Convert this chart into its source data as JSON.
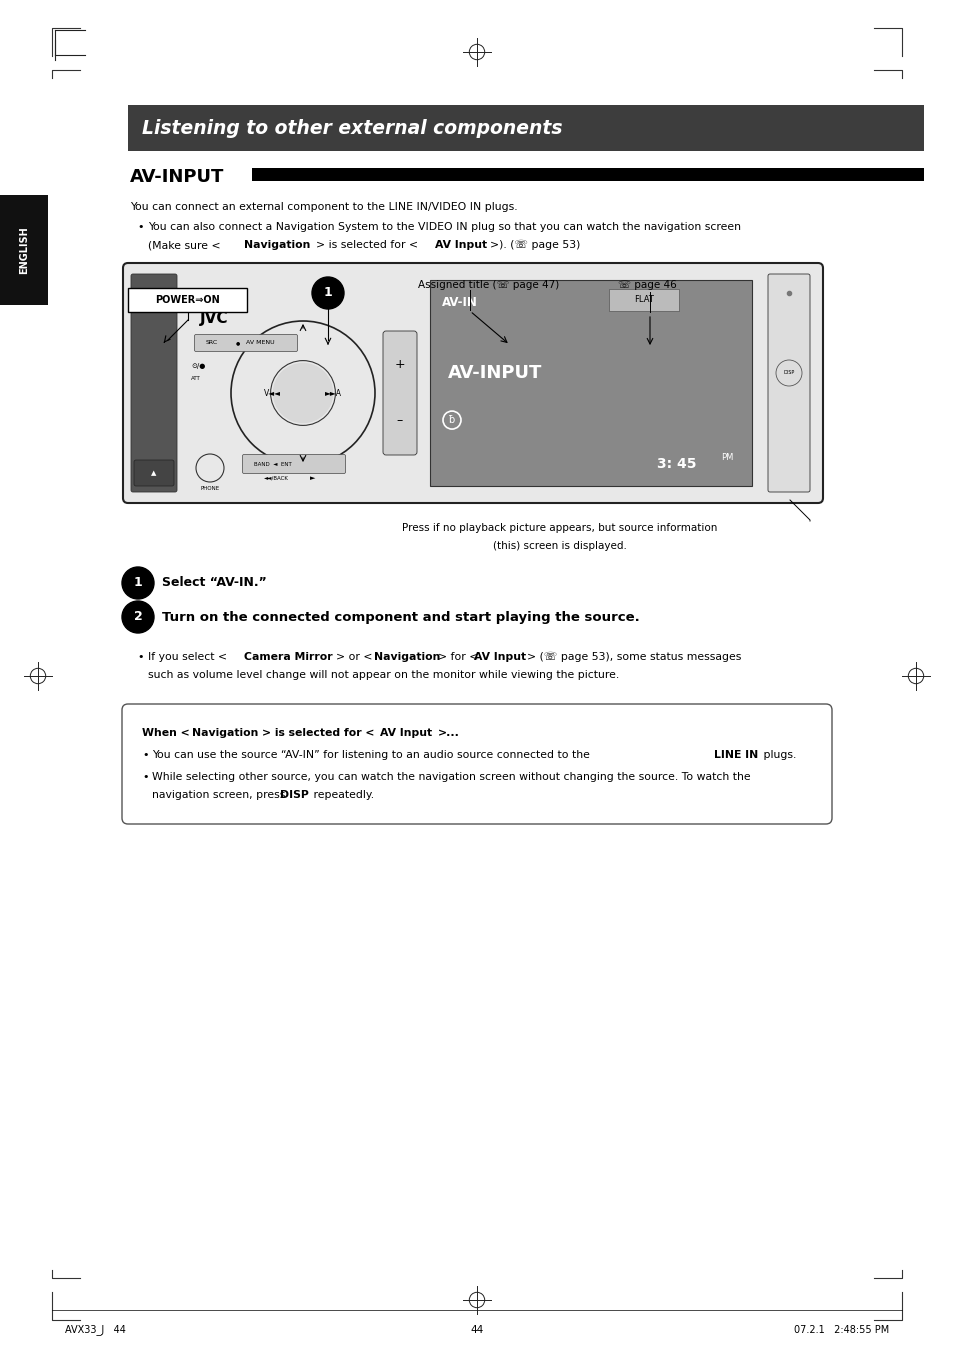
{
  "bg_color": "#ffffff",
  "page_width": 9.54,
  "page_height": 13.52,
  "title_text": "Listening to other external components",
  "title_bg": "#3d3d3d",
  "section_heading": "AV-INPUT",
  "body_text_1": "You can connect an external component to the LINE IN/VIDEO IN plugs.",
  "step1_text": "Select “AV-IN.”",
  "step2_text": "Turn on the connected component and start playing the source.",
  "footer_left": "AVX33_J   44",
  "footer_center": "44",
  "footer_right": "07.2.1   2:48:55 PM"
}
